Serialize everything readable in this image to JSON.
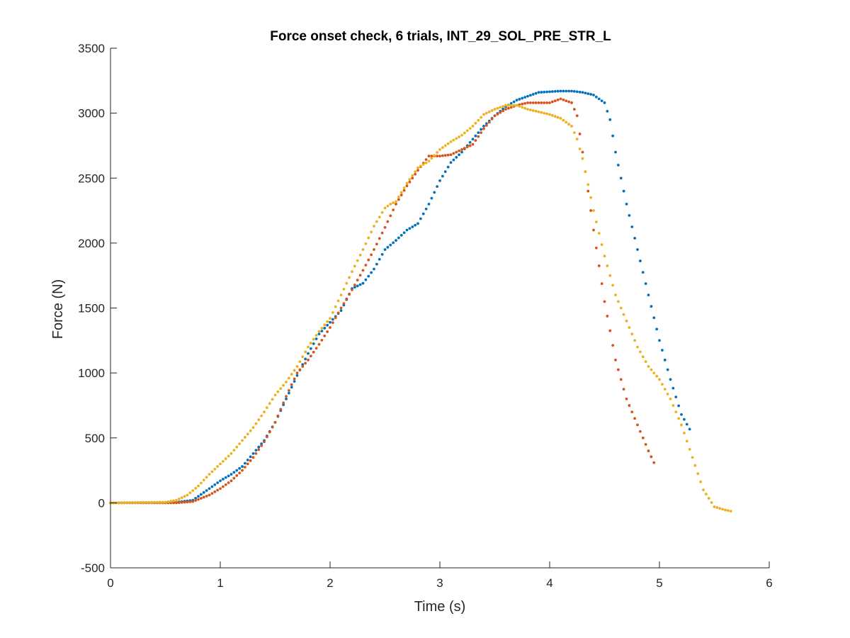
{
  "chart_data": {
    "type": "scatter",
    "title": "Force onset check, 6 trials, INT_29_SOL_PRE_STR_L",
    "xlabel": "Time (s)",
    "ylabel": "Force (N)",
    "xlim": [
      0,
      6
    ],
    "ylim": [
      -500,
      3500
    ],
    "x_ticks": [
      "0",
      "1",
      "2",
      "3",
      "4",
      "5",
      "6"
    ],
    "y_ticks": [
      "-500",
      "0",
      "500",
      "1000",
      "1500",
      "2000",
      "2500",
      "3000",
      "3500"
    ],
    "grid": false,
    "legend": false,
    "series": [
      {
        "color": "#0072BD",
        "step": 0.025,
        "x": [
          0,
          0.6,
          0.75,
          0.9,
          1.0,
          1.1,
          1.2,
          1.3,
          1.4,
          1.5,
          1.6,
          1.7,
          1.8,
          1.9,
          2.0,
          2.1,
          2.2,
          2.3,
          2.4,
          2.5,
          2.6,
          2.7,
          2.8,
          2.9,
          3.0,
          3.1,
          3.2,
          3.3,
          3.4,
          3.5,
          3.6,
          3.7,
          3.8,
          3.9,
          4.0,
          4.1,
          4.2,
          4.3,
          4.4,
          4.5,
          4.55,
          4.6,
          4.7,
          4.8,
          4.9,
          5.0,
          5.1,
          5.2,
          5.28
        ],
        "y": [
          0,
          5,
          20,
          110,
          170,
          220,
          280,
          380,
          480,
          620,
          800,
          980,
          1150,
          1300,
          1390,
          1480,
          1650,
          1690,
          1800,
          1950,
          2020,
          2100,
          2150,
          2300,
          2480,
          2620,
          2700,
          2800,
          2900,
          2980,
          3050,
          3100,
          3130,
          3160,
          3165,
          3170,
          3170,
          3160,
          3140,
          3080,
          2950,
          2700,
          2300,
          1950,
          1600,
          1250,
          950,
          680,
          560
        ]
      },
      {
        "color": "#D95319",
        "step": 0.025,
        "x": [
          0,
          0.6,
          0.75,
          0.9,
          1.0,
          1.1,
          1.2,
          1.3,
          1.4,
          1.5,
          1.6,
          1.7,
          1.8,
          1.9,
          2.0,
          2.1,
          2.2,
          2.3,
          2.4,
          2.5,
          2.6,
          2.7,
          2.8,
          2.9,
          3.0,
          3.1,
          3.2,
          3.3,
          3.4,
          3.5,
          3.6,
          3.7,
          3.8,
          3.9,
          4.0,
          4.1,
          4.2,
          4.25,
          4.3,
          4.4,
          4.5,
          4.6,
          4.7,
          4.8,
          4.9,
          4.95
        ],
        "y": [
          0,
          0,
          10,
          60,
          110,
          170,
          250,
          350,
          470,
          620,
          820,
          1000,
          1100,
          1220,
          1350,
          1500,
          1640,
          1790,
          1950,
          2120,
          2300,
          2440,
          2560,
          2670,
          2670,
          2680,
          2720,
          2760,
          2880,
          2980,
          3030,
          3060,
          3080,
          3080,
          3080,
          3110,
          3080,
          2980,
          2700,
          2100,
          1550,
          1100,
          800,
          600,
          400,
          310
        ]
      },
      {
        "color": "#EDB120",
        "step": 0.025,
        "x": [
          0,
          0.5,
          0.6,
          0.7,
          0.8,
          0.9,
          1.0,
          1.1,
          1.2,
          1.3,
          1.4,
          1.5,
          1.6,
          1.7,
          1.8,
          1.9,
          2.0,
          2.1,
          2.2,
          2.3,
          2.4,
          2.5,
          2.55,
          2.6,
          2.7,
          2.8,
          2.9,
          3.0,
          3.1,
          3.2,
          3.3,
          3.4,
          3.5,
          3.6,
          3.7,
          3.8,
          3.9,
          4.0,
          4.1,
          4.2,
          4.25,
          4.3,
          4.4,
          4.5,
          4.6,
          4.7,
          4.8,
          4.9,
          5.0,
          5.1,
          5.2,
          5.3,
          5.4,
          5.5,
          5.6,
          5.66
        ],
        "y": [
          0,
          5,
          20,
          60,
          130,
          220,
          300,
          380,
          480,
          580,
          700,
          830,
          930,
          1050,
          1200,
          1320,
          1420,
          1600,
          1780,
          1950,
          2130,
          2270,
          2300,
          2320,
          2460,
          2580,
          2630,
          2720,
          2780,
          2830,
          2900,
          2990,
          3030,
          3060,
          3060,
          3030,
          3010,
          2990,
          2960,
          2900,
          2800,
          2650,
          2250,
          1900,
          1600,
          1400,
          1200,
          1050,
          950,
          800,
          600,
          350,
          100,
          -30,
          -55,
          -65
        ]
      }
    ]
  }
}
